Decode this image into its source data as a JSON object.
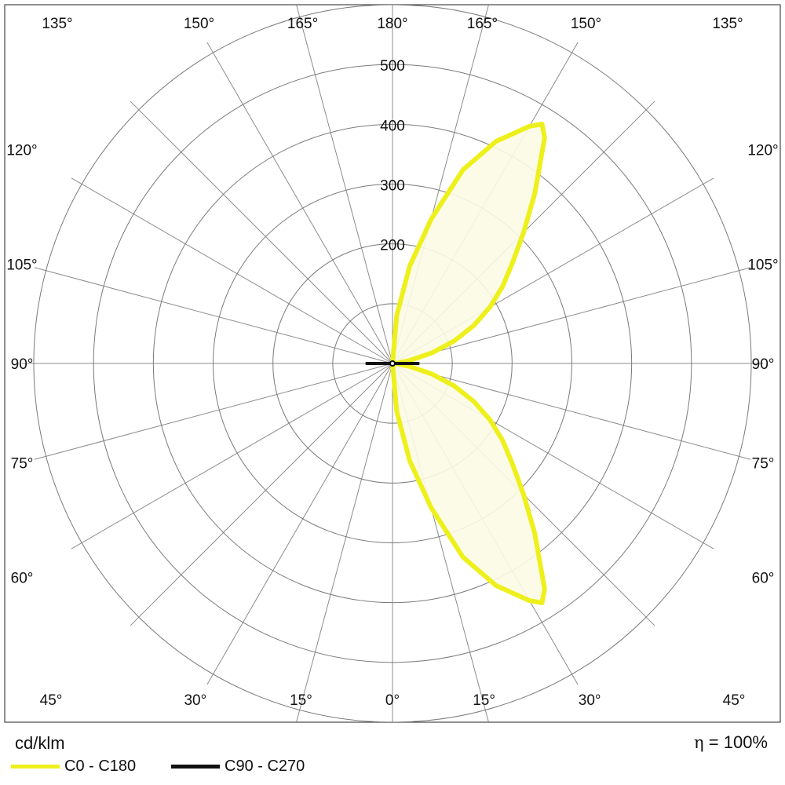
{
  "chart_data": {
    "type": "polar",
    "unit_label": "cd/klm",
    "efficiency_symbol": "η",
    "efficiency_value": "= 100%",
    "radial_ticks": [
      100,
      200,
      300,
      400,
      500
    ],
    "radial_tick_labels": [
      "200",
      "300",
      "400",
      "500"
    ],
    "rmax": 600,
    "angle_labels": [
      {
        "text": "0°",
        "deg": 0
      },
      {
        "text": "15°",
        "deg": 15
      },
      {
        "text": "15°",
        "deg": -15
      },
      {
        "text": "30°",
        "deg": 30
      },
      {
        "text": "30°",
        "deg": -30
      },
      {
        "text": "45°",
        "deg": 45
      },
      {
        "text": "45°",
        "deg": -45
      },
      {
        "text": "60°",
        "deg": 60
      },
      {
        "text": "60°",
        "deg": -60
      },
      {
        "text": "75°",
        "deg": 75
      },
      {
        "text": "75°",
        "deg": -75
      },
      {
        "text": "90°",
        "deg": 90
      },
      {
        "text": "90°",
        "deg": -90
      },
      {
        "text": "105°",
        "deg": 105
      },
      {
        "text": "105°",
        "deg": -105
      },
      {
        "text": "120°",
        "deg": 120
      },
      {
        "text": "120°",
        "deg": -120
      },
      {
        "text": "135°",
        "deg": 135
      },
      {
        "text": "135°",
        "deg": -135
      },
      {
        "text": "150°",
        "deg": 150
      },
      {
        "text": "150°",
        "deg": -150
      },
      {
        "text": "165°",
        "deg": 165
      },
      {
        "text": "165°",
        "deg": -165
      },
      {
        "text": "180°",
        "deg": 180
      }
    ],
    "series": [
      {
        "name": "C0 - C180",
        "color": "#eef01c",
        "fill": "#fbfbe6",
        "points": [
          [
            0,
            0
          ],
          [
            5,
            80
          ],
          [
            10,
            165
          ],
          [
            15,
            250
          ],
          [
            20,
            345
          ],
          [
            25,
            410
          ],
          [
            30,
            458
          ],
          [
            32,
            472
          ],
          [
            34,
            455
          ],
          [
            40,
            370
          ],
          [
            45,
            310
          ],
          [
            50,
            262
          ],
          [
            55,
            225
          ],
          [
            60,
            188
          ],
          [
            65,
            150
          ],
          [
            70,
            110
          ],
          [
            75,
            68
          ],
          [
            80,
            30
          ],
          [
            85,
            8
          ],
          [
            90,
            0
          ],
          [
            95,
            8
          ],
          [
            100,
            30
          ],
          [
            105,
            68
          ],
          [
            110,
            110
          ],
          [
            115,
            150
          ],
          [
            120,
            188
          ],
          [
            125,
            225
          ],
          [
            130,
            262
          ],
          [
            135,
            310
          ],
          [
            140,
            370
          ],
          [
            146,
            455
          ],
          [
            148,
            472
          ],
          [
            150,
            458
          ],
          [
            155,
            410
          ],
          [
            160,
            345
          ],
          [
            165,
            250
          ],
          [
            170,
            165
          ],
          [
            175,
            80
          ],
          [
            180,
            0
          ]
        ]
      },
      {
        "name": "C90 - C270",
        "color": "#111111",
        "points": [
          [
            90,
            45
          ],
          [
            270,
            45
          ]
        ]
      }
    ]
  }
}
